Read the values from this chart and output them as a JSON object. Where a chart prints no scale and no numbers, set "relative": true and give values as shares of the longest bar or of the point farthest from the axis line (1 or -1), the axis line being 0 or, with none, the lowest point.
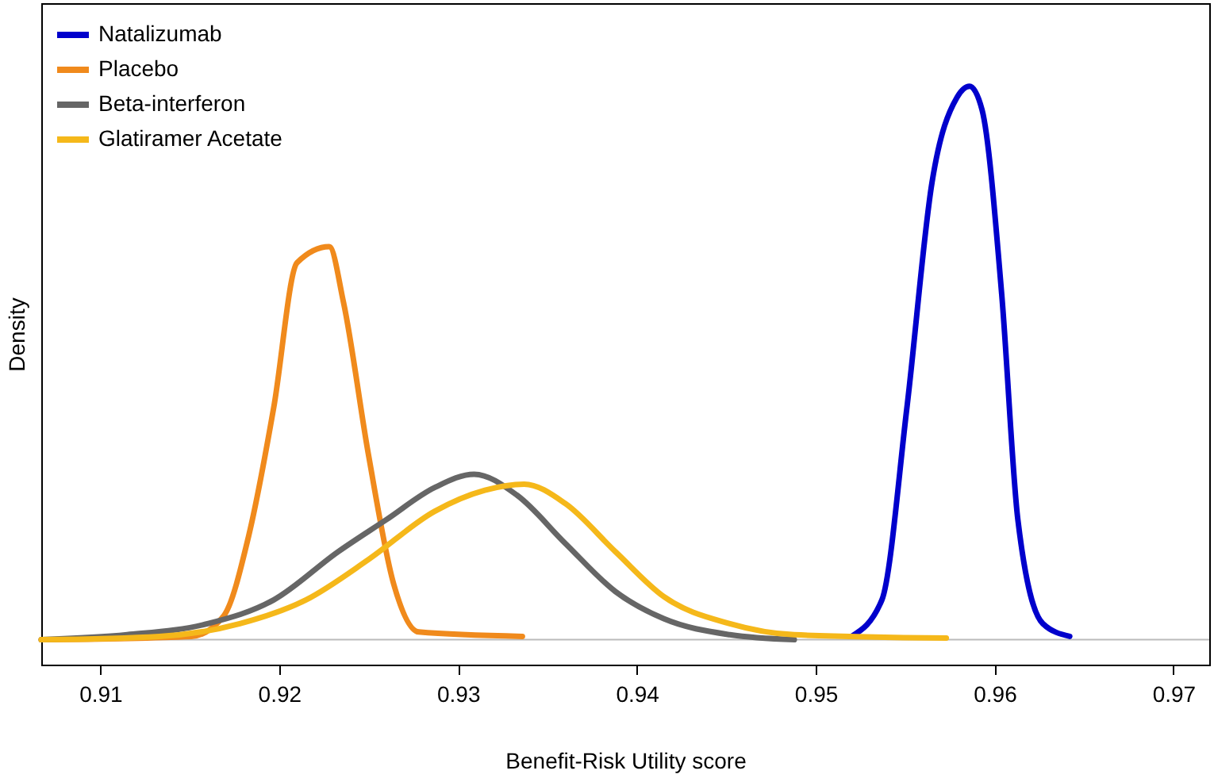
{
  "chart_data": {
    "type": "line",
    "xlabel": "Benefit-Risk Utility score",
    "ylabel": "Density",
    "relative": true,
    "xlim": [
      0.9067,
      0.972
    ],
    "xticks": [
      0.91,
      0.92,
      0.93,
      0.94,
      0.95,
      0.96,
      0.97
    ],
    "grid": false,
    "legend": "top left",
    "line_style": "solid",
    "marker": "none",
    "tick_labels": "x",
    "series": [
      {
        "name": "Natalizumab",
        "color": "#0000cc",
        "x": [
          0.952,
          0.9537,
          0.9551,
          0.9565,
          0.9579,
          0.9586,
          0.9593,
          0.9604,
          0.9613,
          0.9627,
          0.9642
        ],
        "values": [
          0.006,
          0.072,
          0.42,
          0.826,
          0.98,
          1,
          0.957,
          0.623,
          0.217,
          0.029,
          0.006
        ]
      },
      {
        "name": "Placebo",
        "color": "#f08a1c",
        "x": [
          0.9067,
          0.9151,
          0.9169,
          0.9183,
          0.9197,
          0.921,
          0.9228,
          0.9236,
          0.925,
          0.9264,
          0.9278,
          0.9336
        ],
        "values": [
          0,
          0.006,
          0.043,
          0.188,
          0.42,
          0.681,
          0.71,
          0.609,
          0.333,
          0.101,
          0.014,
          0.006
        ]
      },
      {
        "name": "Beta-interferon",
        "color": "#666666",
        "x": [
          0.9067,
          0.9115,
          0.916,
          0.9197,
          0.9233,
          0.926,
          0.9287,
          0.9309,
          0.9333,
          0.936,
          0.9388,
          0.9415,
          0.9452,
          0.9488
        ],
        "values": [
          0,
          0.009,
          0.029,
          0.072,
          0.159,
          0.217,
          0.275,
          0.299,
          0.261,
          0.174,
          0.087,
          0.038,
          0.009,
          0
        ]
      },
      {
        "name": "Glatiramer Acetate",
        "color": "#f5b81a",
        "x": [
          0.9067,
          0.9133,
          0.9178,
          0.9215,
          0.925,
          0.9287,
          0.9315,
          0.9337,
          0.936,
          0.9388,
          0.9415,
          0.9452,
          0.9488,
          0.9573
        ],
        "values": [
          0,
          0.006,
          0.029,
          0.072,
          0.145,
          0.232,
          0.27,
          0.281,
          0.246,
          0.159,
          0.078,
          0.029,
          0.009,
          0.003
        ]
      }
    ]
  }
}
